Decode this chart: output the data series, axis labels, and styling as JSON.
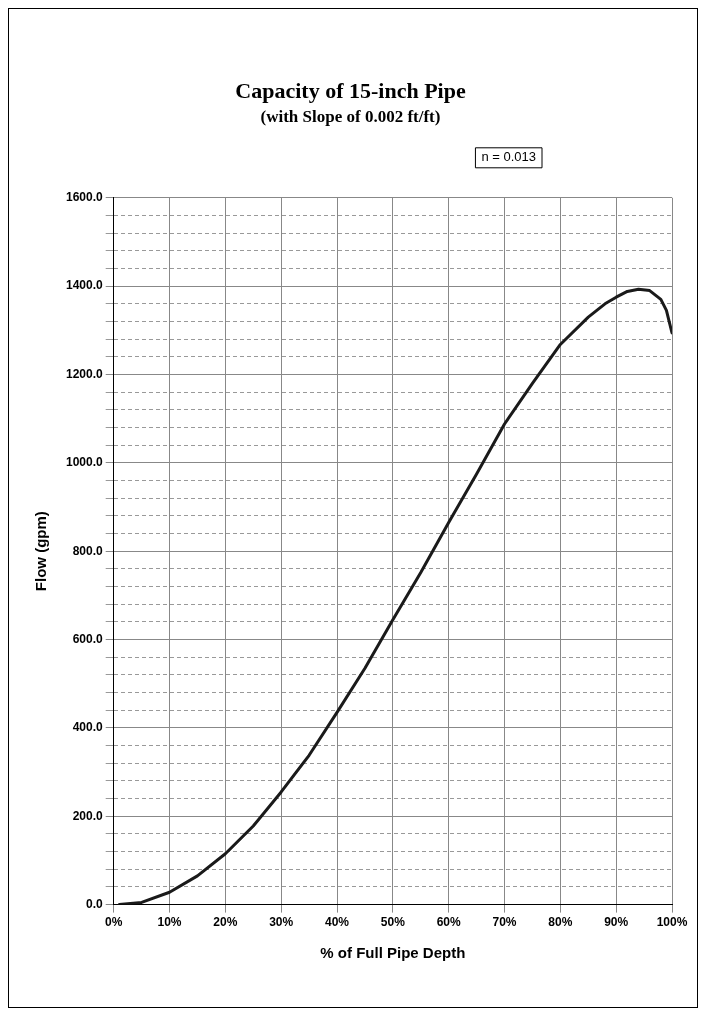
{
  "chart_data": {
    "type": "line",
    "title": "Capacity of 15-inch Pipe",
    "subtitle": "(with Slope of 0.002 ft/ft)",
    "xlabel": "% of Full Pipe Depth",
    "ylabel": "Flow (gpm)",
    "annotations": [
      "n = 0.013"
    ],
    "x": [
      1,
      5,
      10,
      15,
      20,
      25,
      30,
      35,
      40,
      45,
      50,
      55,
      60,
      65,
      70,
      75,
      80,
      85,
      88,
      90,
      92,
      94,
      96,
      98,
      99,
      100
    ],
    "series": [
      {
        "color": "#1a1a1a",
        "values": [
          0,
          5,
          28,
          65,
          115,
          178,
          255,
          338,
          435,
          535,
          645,
          752,
          865,
          975,
          1088,
          1180,
          1268,
          1330,
          1360,
          1375,
          1388,
          1393,
          1390,
          1370,
          1345,
          1294
        ]
      }
    ],
    "xlim": [
      0,
      100
    ],
    "xticks": [
      {
        "value": 0,
        "label": "0%"
      },
      {
        "value": 10,
        "label": "10%"
      },
      {
        "value": 20,
        "label": "20%"
      },
      {
        "value": 30,
        "label": "30%"
      },
      {
        "value": 40,
        "label": "40%"
      },
      {
        "value": 50,
        "label": "50%"
      },
      {
        "value": 60,
        "label": "60%"
      },
      {
        "value": 70,
        "label": "70%"
      },
      {
        "value": 80,
        "label": "80%"
      },
      {
        "value": 90,
        "label": "90%"
      },
      {
        "value": 100,
        "label": "100%"
      }
    ],
    "ylim": [
      0,
      1600
    ],
    "yticks": [
      {
        "value": 0,
        "label": "0.0"
      },
      {
        "value": 40,
        "label": null
      },
      {
        "value": 80,
        "label": null
      },
      {
        "value": 120,
        "label": null
      },
      {
        "value": 160,
        "label": null
      },
      {
        "value": 200,
        "label": "200.0"
      },
      {
        "value": 240,
        "label": null
      },
      {
        "value": 280,
        "label": null
      },
      {
        "value": 320,
        "label": null
      },
      {
        "value": 360,
        "label": null
      },
      {
        "value": 400,
        "label": "400.0"
      },
      {
        "value": 440,
        "label": null
      },
      {
        "value": 480,
        "label": null
      },
      {
        "value": 520,
        "label": null
      },
      {
        "value": 560,
        "label": null
      },
      {
        "value": 600,
        "label": "600.0"
      },
      {
        "value": 640,
        "label": null
      },
      {
        "value": 680,
        "label": null
      },
      {
        "value": 720,
        "label": null
      },
      {
        "value": 760,
        "label": null
      },
      {
        "value": 800,
        "label": "800.0"
      },
      {
        "value": 840,
        "label": null
      },
      {
        "value": 880,
        "label": null
      },
      {
        "value": 920,
        "label": null
      },
      {
        "value": 960,
        "label": null
      },
      {
        "value": 1000,
        "label": "1000.0"
      },
      {
        "value": 1040,
        "label": null
      },
      {
        "value": 1080,
        "label": null
      },
      {
        "value": 1120,
        "label": null
      },
      {
        "value": 1160,
        "label": null
      },
      {
        "value": 1200,
        "label": "1200.0"
      },
      {
        "value": 1240,
        "label": null
      },
      {
        "value": 1280,
        "label": null
      },
      {
        "value": 1320,
        "label": null
      },
      {
        "value": 1360,
        "label": null
      },
      {
        "value": 1400,
        "label": "1400.0"
      },
      {
        "value": 1440,
        "label": null
      },
      {
        "value": 1480,
        "label": null
      },
      {
        "value": 1520,
        "label": null
      },
      {
        "value": 1560,
        "label": null
      },
      {
        "value": 1600,
        "label": "1600.0"
      }
    ],
    "grid": true,
    "legend": false,
    "marker": "none",
    "line_style": "solid"
  }
}
